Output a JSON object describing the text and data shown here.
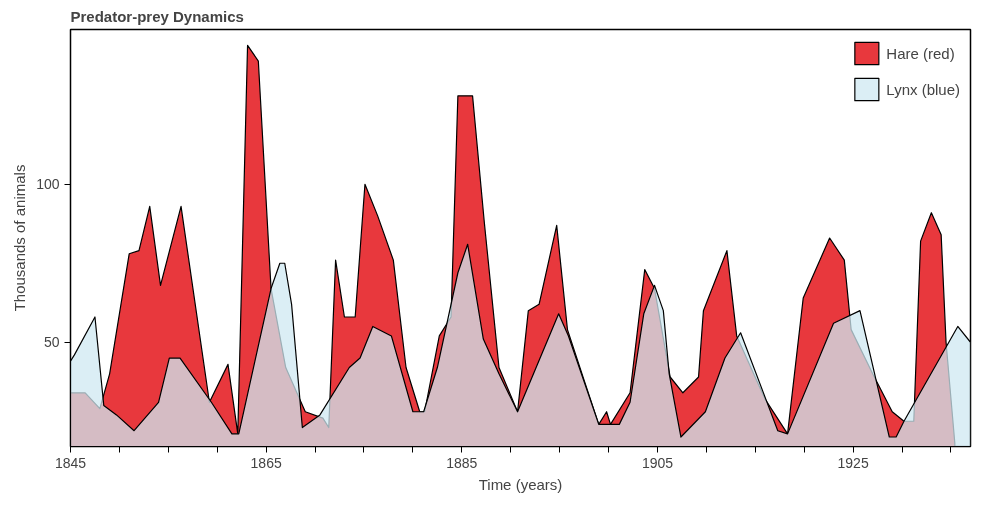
{
  "chart_data": {
    "type": "area",
    "title": "Predator-prey Dynamics",
    "xlabel": "Time (years)",
    "ylabel": "Thousands of animals",
    "xlim": [
      1845,
      1937
    ],
    "ylim": [
      17,
      149
    ],
    "xticks": [
      1845,
      {
        "value": 1850,
        "label": null
      },
      {
        "value": 1855,
        "label": null
      },
      {
        "value": 1860,
        "label": null
      },
      1865,
      {
        "value": 1870,
        "label": null
      },
      {
        "value": 1875,
        "label": null
      },
      {
        "value": 1880,
        "label": null
      },
      1885,
      {
        "value": 1890,
        "label": null
      },
      {
        "value": 1895,
        "label": null
      },
      {
        "value": 1900,
        "label": null
      },
      1905,
      {
        "value": 1910,
        "label": null
      },
      {
        "value": 1915,
        "label": null
      },
      {
        "value": 1920,
        "label": null
      },
      1925,
      {
        "value": 1930,
        "label": null
      },
      {
        "value": 1935,
        "label": null
      }
    ],
    "yticks": [
      50,
      100
    ],
    "grid": false,
    "legend": "top right",
    "series": [
      {
        "name": "Hare (red)",
        "color": "#e8383d",
        "x": [
          1845,
          1846.5,
          1848,
          1849,
          1851,
          1852,
          1853.1,
          1854.2,
          1856.3,
          1859.2,
          1861.1,
          1862.1,
          1863.1,
          1864.2,
          1865.5,
          1867,
          1869,
          1870.8,
          1871.4,
          1872.1,
          1873,
          1874.1,
          1875.1,
          1876.4,
          1878,
          1879.3,
          1880.7,
          1881.2,
          1882.7,
          1883.9,
          1884.6,
          1886.1,
          1887.3,
          1888.8,
          1890.7,
          1891.8,
          1892.9,
          1894.7,
          1895.8,
          1897.5,
          1899,
          1899.8,
          1900.2,
          1902.2,
          1903.7,
          1904.7,
          1906.3,
          1907.6,
          1909.2,
          1909.7,
          1912.1,
          1913.1,
          1916,
          1918.3,
          1919.9,
          1922.6,
          1924.1,
          1924.8,
          1927,
          1929,
          1930.2,
          1931.2,
          1931.9,
          1933,
          1934,
          1934.5,
          1935.4
        ],
        "values": [
          34,
          34,
          29,
          40,
          78,
          79,
          93,
          68,
          93,
          31,
          43,
          21,
          144,
          139,
          67,
          42,
          28,
          26,
          23,
          76,
          58,
          58,
          100,
          90,
          76,
          42,
          28,
          28,
          52,
          58,
          128,
          128,
          88,
          42,
          28,
          60,
          62,
          87,
          54,
          38,
          24,
          28,
          24,
          34,
          73,
          67,
          39,
          34,
          39,
          60,
          79,
          52,
          32,
          21,
          64,
          83,
          76,
          54,
          40,
          28,
          25,
          25,
          82,
          91,
          84,
          50,
          18
        ]
      },
      {
        "name": "Lynx (blue)",
        "color": "#cfe8f2",
        "x": [
          1845,
          1845.4,
          1847.5,
          1848.4,
          1849.7,
          1851.5,
          1854,
          1855.1,
          1856.2,
          1859.4,
          1861.5,
          1862.2,
          1865.5,
          1866.4,
          1866.9,
          1867.6,
          1868.7,
          1870.5,
          1873.5,
          1874.6,
          1875.9,
          1877.8,
          1880,
          1881.1,
          1882.5,
          1884.6,
          1885.6,
          1887.2,
          1888.8,
          1890.7,
          1894.9,
          1895.9,
          1899,
          1901.1,
          1902.2,
          1903.6,
          1904.7,
          1905.6,
          1906.2,
          1907.4,
          1909.9,
          1911.9,
          1913.5,
          1917.3,
          1918.3,
          1923,
          1925.7,
          1928.7,
          1929.4,
          1930.2,
          1935.7,
          1937
        ],
        "values": [
          44,
          46,
          58,
          30,
          27,
          22,
          31,
          45,
          45,
          31,
          21,
          21,
          67,
          75,
          75,
          62,
          23,
          27,
          42,
          45,
          55,
          52,
          28,
          28,
          42,
          72,
          81,
          51,
          40,
          28,
          59,
          52,
          24,
          24,
          31,
          59,
          68,
          60,
          40,
          20,
          28,
          45,
          53,
          22,
          21,
          56,
          60,
          20,
          20,
          25,
          55,
          50
        ]
      }
    ]
  }
}
